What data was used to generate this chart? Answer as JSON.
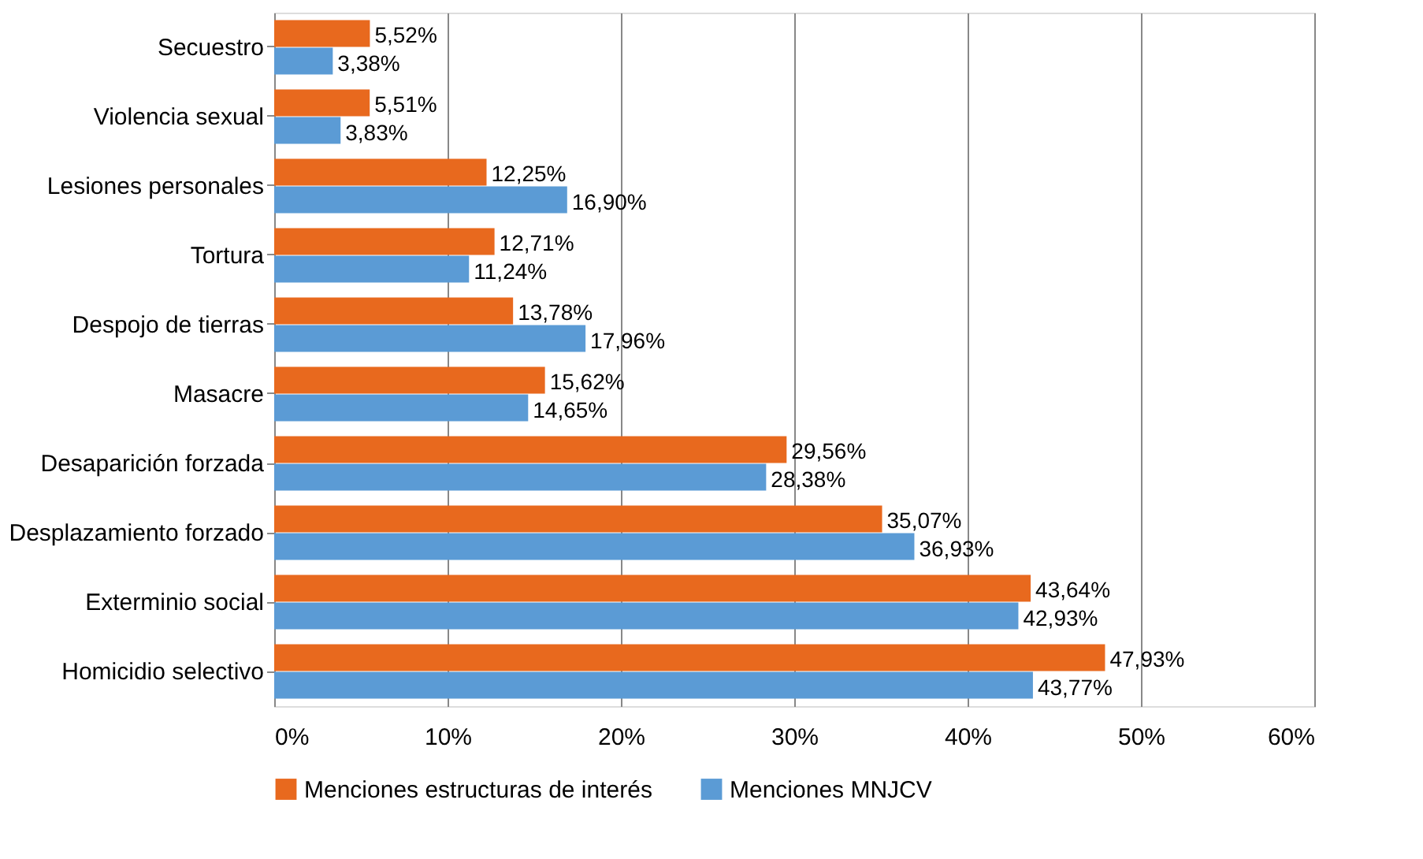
{
  "chart_data": {
    "type": "bar",
    "orientation": "horizontal",
    "categories": [
      "Secuestro",
      "Violencia sexual",
      "Lesiones personales",
      "Tortura",
      "Despojo de tierras",
      "Masacre",
      "Desaparición forzada",
      "Desplazamiento forzado",
      "Exterminio social",
      "Homicidio selectivo"
    ],
    "series": [
      {
        "name": "Menciones estructuras de interés",
        "color": "#e8691e",
        "values": [
          5.52,
          5.51,
          12.25,
          12.71,
          13.78,
          15.62,
          29.56,
          35.07,
          43.64,
          47.93
        ],
        "value_labels": [
          "5,52%",
          "5,51%",
          "12,25%",
          "12,71%",
          "13,78%",
          "15,62%",
          "29,56%",
          "35,07%",
          "43,64%",
          "47,93%"
        ]
      },
      {
        "name": "Menciones MNJCV",
        "color": "#5b9bd5",
        "values": [
          3.38,
          3.83,
          16.9,
          11.24,
          17.96,
          14.65,
          28.38,
          36.93,
          42.93,
          43.77
        ],
        "value_labels": [
          "3,38%",
          "3,83%",
          "16,90%",
          "11,24%",
          "17,96%",
          "14,65%",
          "28,38%",
          "36,93%",
          "42,93%",
          "43,77%"
        ]
      }
    ],
    "xlim": [
      0,
      60
    ],
    "xticks": [
      {
        "value": 0,
        "label": "0%"
      },
      {
        "value": 10,
        "label": "10%"
      },
      {
        "value": 20,
        "label": "20%"
      },
      {
        "value": 30,
        "label": "30%"
      },
      {
        "value": 40,
        "label": "40%"
      },
      {
        "value": 50,
        "label": "50%"
      },
      {
        "value": 60,
        "label": "60%"
      }
    ],
    "grid": "x",
    "legend": "bottom"
  }
}
